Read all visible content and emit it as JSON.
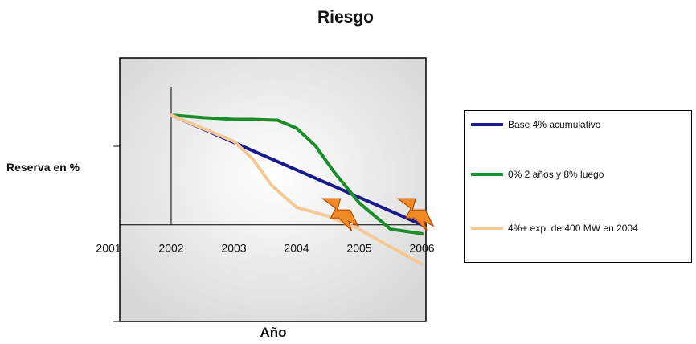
{
  "chart_data": {
    "type": "line",
    "title": "Riesgo",
    "xlabel": "Año",
    "ylabel": "Reserva en %",
    "x_ticks": [
      "2001",
      "2002",
      "2003",
      "2004",
      "2005",
      "2006"
    ],
    "xlim": [
      2001,
      2006
    ],
    "ylim": [
      -11,
      19
    ],
    "grid": false,
    "legend_position": "right",
    "series": [
      {
        "name": "Base 4% acumulativo",
        "color": "#1a1a8c",
        "x": [
          2002,
          2006
        ],
        "y": [
          12.5,
          0
        ]
      },
      {
        "name": "0% 2 años y 8% luego",
        "color": "#1a8c2a",
        "x": [
          2002,
          2002.5,
          2003,
          2003.3,
          2003.7,
          2004,
          2004.3,
          2004.6,
          2005,
          2005.5,
          2006
        ],
        "y": [
          12.5,
          12.2,
          12.0,
          12.0,
          11.9,
          11.0,
          9.0,
          6.0,
          2.5,
          -0.5,
          -1.0
        ]
      },
      {
        "name": "4%+ exp. de 400 MW en 2004",
        "color": "#f5c898",
        "x": [
          2002,
          2002.5,
          2003,
          2003.3,
          2003.6,
          2004,
          2004.5,
          2005,
          2005.5,
          2006
        ],
        "y": [
          12.5,
          11.0,
          9.5,
          7.5,
          4.5,
          2.0,
          1.0,
          -0.5,
          -2.5,
          -4.5
        ]
      }
    ],
    "risk_markers": [
      {
        "x": 2004.7,
        "y": 0.6
      },
      {
        "x": 2005.9,
        "y": 0.6
      }
    ]
  },
  "colors": {
    "plot_background": "#dcdcdc",
    "risk_marker_fill": "#f08a24",
    "risk_marker_stroke": "#b04a00"
  }
}
